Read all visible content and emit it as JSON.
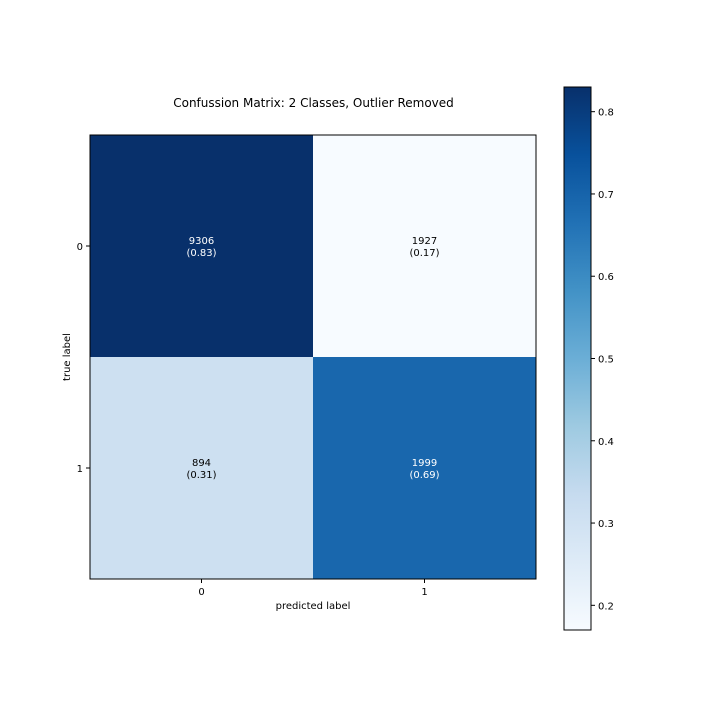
{
  "chart_data": {
    "type": "heatmap",
    "title": "Confussion Matrix: 2 Classes, Outlier Removed",
    "xlabel": "predicted label",
    "ylabel": "true label",
    "x_categories": [
      "0",
      "1"
    ],
    "y_categories": [
      "0",
      "1"
    ],
    "counts": [
      [
        9306,
        1927
      ],
      [
        894,
        1999
      ]
    ],
    "normalized": [
      [
        0.83,
        0.17
      ],
      [
        0.31,
        0.69
      ]
    ],
    "cell_labels": [
      [
        {
          "count": "9306",
          "ratio": "(0.83)"
        },
        {
          "count": "1927",
          "ratio": "(0.17)"
        }
      ],
      [
        {
          "count": "894",
          "ratio": "(0.31)"
        },
        {
          "count": "1999",
          "ratio": "(0.69)"
        }
      ]
    ],
    "colorbar": {
      "range": [
        0.17,
        0.83
      ],
      "ticks": [
        "0.2",
        "0.3",
        "0.4",
        "0.5",
        "0.6",
        "0.7",
        "0.8"
      ],
      "colormap": "Blues",
      "colors": [
        "#f7fbff",
        "#deebf7",
        "#c6dbef",
        "#9ecae1",
        "#6baed6",
        "#4292c6",
        "#2171b5",
        "#08519c",
        "#08306b"
      ]
    },
    "grid": false
  }
}
